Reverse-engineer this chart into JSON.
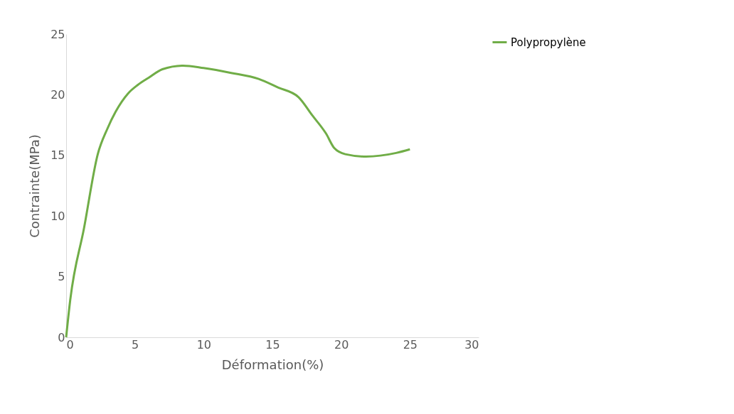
{
  "chart_data": {
    "type": "line",
    "xlabel": "Déformation(%)",
    "ylabel": "Contrainte(MPa)",
    "xlim": [
      0,
      30
    ],
    "xticks": [
      0,
      5,
      10,
      15,
      20,
      25,
      30
    ],
    "ylim": [
      0,
      25
    ],
    "yticks": [
      0,
      5,
      10,
      15,
      20,
      25
    ],
    "grid": false,
    "legend": "right",
    "marker": "none",
    "line_style": "solid",
    "series": [
      {
        "name": "Polypropylène",
        "color": "#70ad47",
        "x": [
          0,
          0.3,
          1.3,
          2.3,
          3.0,
          3.6,
          4.5,
          5.2,
          6.0,
          7.0,
          8.5,
          10.0,
          12.0,
          14.0,
          15.4,
          16.9,
          17.9,
          18.9,
          19.5,
          20.3,
          21.8,
          24.0,
          25.0
        ],
        "values": [
          0,
          3.1,
          9,
          15.1,
          17.2,
          18.6,
          20.1,
          20.8,
          21.4,
          22.1,
          22.4,
          22.2,
          21.8,
          21.3,
          20.6,
          19.8,
          18.3,
          16.8,
          15.6,
          15.1,
          14.9,
          15.2,
          15.5
        ]
      }
    ]
  }
}
